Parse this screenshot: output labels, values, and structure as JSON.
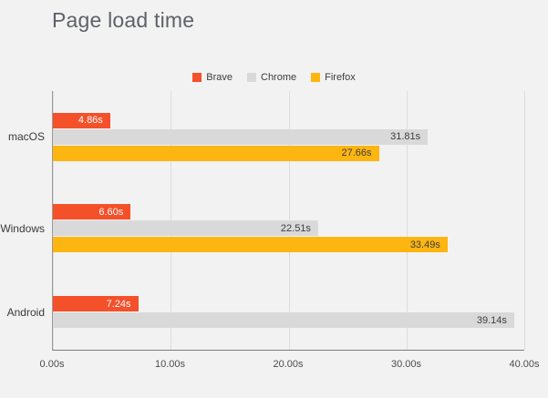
{
  "title": "Page load time",
  "colors": {
    "background": "#f2f2f3",
    "brave": "#f4502a",
    "chrome": "#d9d9d9",
    "firefox": "#fdb511",
    "grid": "#dddddd",
    "axis": "#7d7d7d",
    "title_text": "#5e6167"
  },
  "chart_data": {
    "type": "bar",
    "orientation": "horizontal",
    "title": "Page load time",
    "xlabel": "",
    "ylabel": "",
    "categories": [
      "macOS",
      "Windows",
      "Android"
    ],
    "series": [
      {
        "name": "Brave",
        "color": "#f4502a",
        "label_color": "#ffffff",
        "values": [
          4.86,
          6.6,
          7.24
        ],
        "labels": [
          "4.86s",
          "6.60s",
          "7.24s"
        ]
      },
      {
        "name": "Chrome",
        "color": "#d9d9d9",
        "label_color": "#3d3d3d",
        "values": [
          31.81,
          22.51,
          39.14
        ],
        "labels": [
          "31.81s",
          "22.51s",
          "39.14s"
        ]
      },
      {
        "name": "Firefox",
        "color": "#fdb511",
        "label_color": "#3d3d3d",
        "values": [
          27.66,
          33.49,
          null
        ],
        "labels": [
          "27.66s",
          "33.49s",
          ""
        ]
      }
    ],
    "xlim": [
      0,
      40
    ],
    "x_tick_values": [
      0,
      10,
      20,
      30,
      40
    ],
    "x_ticks": [
      "0.00s",
      "10.00s",
      "20.00s",
      "30.00s",
      "40.00s"
    ],
    "grid": true,
    "legend_position": "top-center"
  }
}
